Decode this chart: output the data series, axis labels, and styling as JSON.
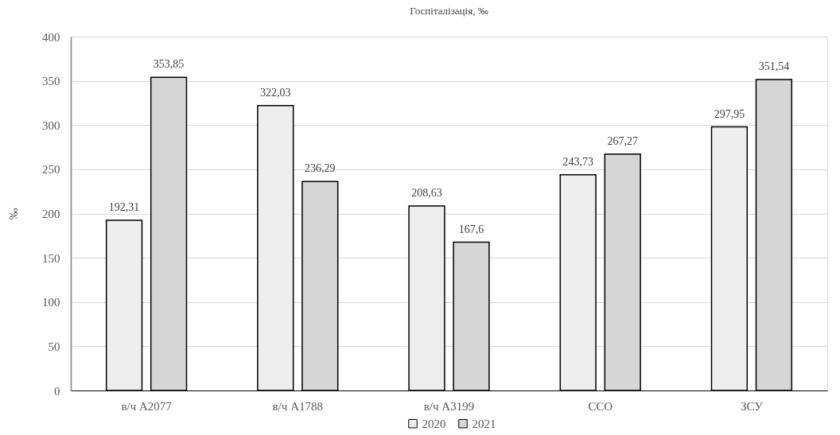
{
  "chart_data": {
    "type": "bar",
    "title": "Госпіталізація, ‰",
    "ylabel": "‰",
    "categories": [
      "в/ч А2077",
      "в/ч А1788",
      "в/ч А3199",
      "ССО",
      "ЗСУ"
    ],
    "series": [
      {
        "name": "2020",
        "color": "#eeeeee",
        "values": [
          192.31,
          322.03,
          208.63,
          243.73,
          297.95
        ],
        "value_labels": [
          "192,31",
          "322,03",
          "208,63",
          "243,73",
          "297,95"
        ]
      },
      {
        "name": "2021",
        "color": "#d6d6d6",
        "values": [
          353.85,
          236.29,
          167.6,
          267.27,
          351.54
        ],
        "value_labels": [
          "353,85",
          "236,29",
          "167,6",
          "267,27",
          "351,54"
        ]
      }
    ],
    "ylim": [
      0,
      400
    ],
    "yticks": [
      0,
      50,
      100,
      150,
      200,
      250,
      300,
      350,
      400
    ],
    "grid": "y",
    "legend": "bottom"
  }
}
